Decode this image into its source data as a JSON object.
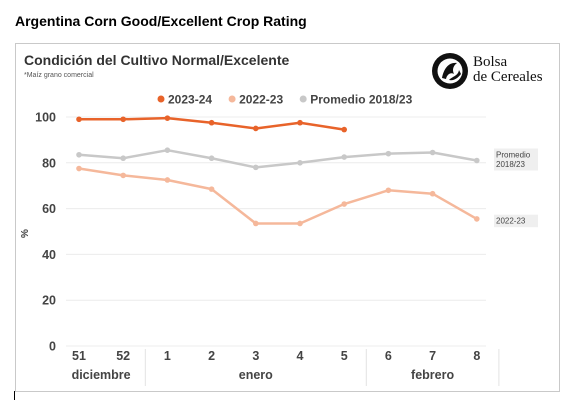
{
  "page": {
    "title": "Argentina Corn Good/Excellent Crop Rating"
  },
  "logo": {
    "line1": "Bolsa",
    "line2": "de Cereales"
  },
  "chart_data": {
    "type": "line",
    "title": "Condición del Cultivo Normal/Excelente",
    "subtitle": "*Maíz grano comercial",
    "ylabel": "%",
    "xlabel": "",
    "ylim": [
      0,
      100
    ],
    "yticks": [
      0,
      20,
      40,
      60,
      80,
      100
    ],
    "categories": [
      "51",
      "52",
      "1",
      "2",
      "3",
      "4",
      "5",
      "6",
      "7",
      "8"
    ],
    "groups": [
      {
        "label": "diciembre",
        "from": 0,
        "to": 1
      },
      {
        "label": "enero",
        "from": 2,
        "to": 6
      },
      {
        "label": "febrero",
        "from": 7,
        "to": 9
      }
    ],
    "legend_position": "top",
    "grid": "horizontal",
    "series": [
      {
        "name": "2023-24",
        "color": "#e8632a",
        "values": [
          99,
          99,
          99.5,
          97.5,
          95,
          97.5,
          94.5,
          null,
          null,
          null
        ]
      },
      {
        "name": "2022-23",
        "color": "#f5b89b",
        "end_label": "2022-23",
        "values": [
          77.5,
          74.5,
          72.5,
          68.5,
          53.5,
          53.5,
          62,
          68,
          66.5,
          55.5
        ]
      },
      {
        "name": "Promedio 2018/23",
        "color": "#c8c8c8",
        "end_label": "Promedio 2018/23",
        "values": [
          83.5,
          82,
          85.5,
          82,
          78,
          80,
          82.5,
          84,
          84.5,
          81
        ]
      }
    ]
  }
}
